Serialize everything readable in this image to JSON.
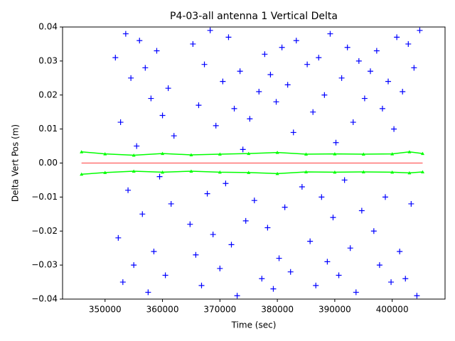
{
  "chart_data": {
    "type": "scatter",
    "title": "P4-03-all antenna 1 Vertical Delta",
    "x_label": "Time (sec)",
    "y_label": "Delta Vert Pos (m)",
    "xlim": [
      342600,
      409200
    ],
    "ylim": [
      -0.04,
      0.04
    ],
    "xticks": [
      350000,
      360000,
      370000,
      380000,
      390000,
      400000
    ],
    "yticks": [
      {
        "value": -0.04,
        "label": "−0.04"
      },
      {
        "value": -0.03,
        "label": "−0.03"
      },
      {
        "value": -0.02,
        "label": "−0.02"
      },
      {
        "value": -0.01,
        "label": "−0.01"
      },
      {
        "value": 0,
        "label": "0.00"
      },
      0.01,
      0.02,
      0.03,
      0.04
    ],
    "series": [
      {
        "style": "markers",
        "marker": "+",
        "color": "#0000ff",
        "x": [
          351800,
          352300,
          352700,
          353100,
          353600,
          354000,
          354500,
          355000,
          355500,
          356000,
          356500,
          357000,
          357500,
          358000,
          358500,
          359000,
          359500,
          360000,
          360500,
          361000,
          361500,
          362000,
          364800,
          365300,
          365800,
          366300,
          366800,
          367300,
          367800,
          368300,
          368800,
          369300,
          370000,
          370500,
          371000,
          371500,
          372000,
          372500,
          373000,
          373500,
          374000,
          374500,
          375200,
          376000,
          376800,
          377300,
          377800,
          378300,
          378800,
          379300,
          379800,
          380300,
          380800,
          381300,
          381800,
          382300,
          382800,
          383300,
          384300,
          385200,
          385700,
          386200,
          386700,
          387200,
          387700,
          388200,
          388700,
          389200,
          389700,
          390200,
          390700,
          391200,
          391700,
          392200,
          392700,
          393200,
          393700,
          394200,
          394700,
          395200,
          396200,
          396800,
          397300,
          397800,
          398300,
          398800,
          399300,
          399800,
          400300,
          400800,
          401300,
          401800,
          402300,
          402800,
          403300,
          403800,
          404300,
          404800
        ],
        "values": [
          0.031,
          -0.022,
          0.012,
          -0.035,
          0.038,
          -0.008,
          0.025,
          -0.03,
          0.005,
          0.036,
          -0.015,
          0.028,
          -0.038,
          0.019,
          -0.026,
          0.033,
          -0.004,
          0.014,
          -0.033,
          0.022,
          -0.012,
          0.008,
          -0.018,
          0.035,
          -0.027,
          0.017,
          -0.036,
          0.029,
          -0.009,
          0.039,
          -0.021,
          0.011,
          -0.031,
          0.024,
          -0.006,
          0.037,
          -0.024,
          0.016,
          -0.039,
          0.027,
          0.004,
          -0.017,
          0.013,
          -0.011,
          0.021,
          -0.034,
          0.032,
          -0.019,
          0.026,
          -0.037,
          0.018,
          -0.028,
          0.034,
          -0.013,
          0.023,
          -0.032,
          0.009,
          0.036,
          -0.007,
          0.029,
          -0.023,
          0.015,
          -0.036,
          0.031,
          -0.01,
          0.02,
          -0.029,
          0.038,
          -0.016,
          0.006,
          -0.033,
          0.025,
          -0.005,
          0.034,
          -0.025,
          0.012,
          -0.038,
          0.03,
          -0.014,
          0.019,
          0.027,
          -0.02,
          0.033,
          -0.03,
          0.016,
          -0.01,
          0.024,
          -0.035,
          0.01,
          0.037,
          -0.026,
          0.021,
          -0.034,
          0.035,
          -0.012,
          0.028,
          -0.039,
          0.039
        ]
      },
      {
        "style": "line",
        "marker": "^",
        "color": "#00ff00",
        "x": [
          345900,
          350000,
          355000,
          360000,
          365000,
          370000,
          375000,
          380000,
          385000,
          390000,
          395000,
          400000,
          403000,
          405300
        ],
        "values": [
          0.0033,
          0.0027,
          0.0023,
          0.0028,
          0.0024,
          0.0026,
          0.0028,
          0.0031,
          0.0026,
          0.0027,
          0.0026,
          0.0027,
          0.0033,
          0.0028
        ]
      },
      {
        "style": "line",
        "marker": "^",
        "color": "#00ff00",
        "x": [
          345900,
          350000,
          355000,
          360000,
          365000,
          370000,
          375000,
          380000,
          385000,
          390000,
          395000,
          400000,
          403000,
          405300
        ],
        "values": [
          -0.0033,
          -0.0028,
          -0.0024,
          -0.0027,
          -0.0024,
          -0.0027,
          -0.0028,
          -0.0031,
          -0.0026,
          -0.0027,
          -0.0026,
          -0.0027,
          -0.0029,
          -0.0026
        ]
      },
      {
        "style": "line",
        "marker": "none",
        "color": "#ff0000",
        "x": [
          345900,
          405300
        ],
        "values": [
          0,
          0
        ]
      }
    ]
  }
}
